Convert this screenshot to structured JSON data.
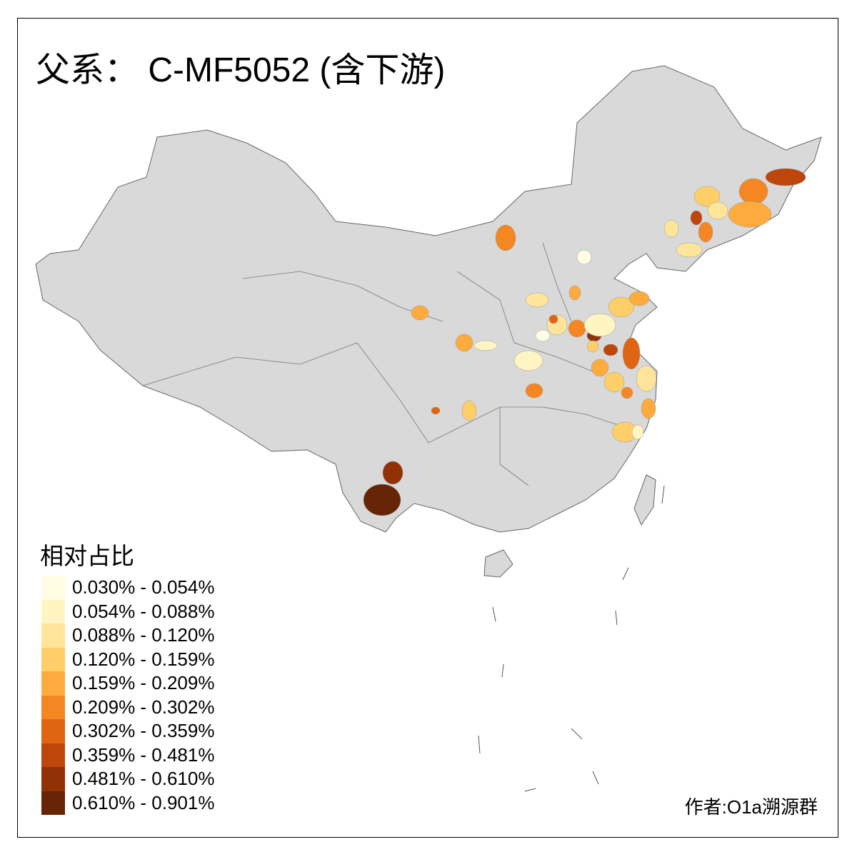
{
  "title": "父系： C-MF5052 (含下游)",
  "legend": {
    "title": "相对占比",
    "classes": [
      {
        "label": "0.030% - 0.054%",
        "color": "#FFFDE3"
      },
      {
        "label": "0.054% - 0.088%",
        "color": "#FFF5C2"
      },
      {
        "label": "0.088% - 0.120%",
        "color": "#FEE59A"
      },
      {
        "label": "0.120% - 0.159%",
        "color": "#FECE68"
      },
      {
        "label": "0.159% - 0.209%",
        "color": "#FDAB3E"
      },
      {
        "label": "0.209% - 0.302%",
        "color": "#F48722"
      },
      {
        "label": "0.302% - 0.359%",
        "color": "#DF6513"
      },
      {
        "label": "0.359% - 0.481%",
        "color": "#BE460A"
      },
      {
        "label": "0.481% - 0.610%",
        "color": "#923106"
      },
      {
        "label": "0.610% - 0.901%",
        "color": "#662506"
      }
    ]
  },
  "base_color": "#D9D9D9",
  "author": "作者:O1a溯源群"
}
